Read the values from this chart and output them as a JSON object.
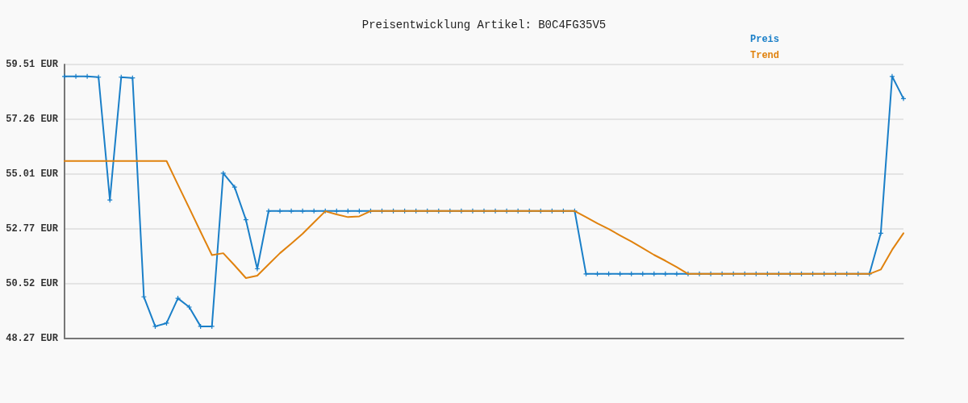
{
  "chart_data": {
    "type": "line",
    "title": "Preisentwicklung Artikel: B0C4FG35V5",
    "categories": [
      null,
      null,
      null,
      null,
      null,
      null,
      null,
      null,
      null,
      null,
      null,
      null,
      null,
      null,
      null,
      null,
      null,
      null,
      null,
      null,
      null,
      null,
      null,
      null,
      null,
      null,
      null,
      null,
      null,
      null,
      null,
      null,
      null,
      null,
      null,
      null,
      null,
      null,
      null,
      null,
      null,
      null,
      null,
      null,
      null,
      null,
      null,
      null,
      null,
      null,
      null,
      null,
      null,
      null,
      null,
      null,
      null,
      null,
      null,
      null,
      null,
      null,
      null,
      null,
      null,
      null,
      null,
      null,
      null,
      null,
      null,
      null,
      null,
      null,
      null
    ],
    "series": [
      {
        "name": "Preis",
        "color": "#1a7fc8",
        "marker": "cross",
        "values": [
          59.02,
          59.02,
          59.02,
          58.99,
          53.95,
          58.99,
          58.96,
          49.98,
          48.77,
          48.9,
          49.92,
          49.56,
          48.77,
          48.77,
          55.05,
          54.48,
          53.14,
          51.13,
          53.5,
          53.5,
          53.5,
          53.5,
          53.5,
          53.5,
          53.5,
          53.5,
          53.5,
          53.5,
          53.5,
          53.5,
          53.5,
          53.5,
          53.5,
          53.5,
          53.5,
          53.5,
          53.5,
          53.5,
          53.5,
          53.5,
          53.5,
          53.5,
          53.5,
          53.5,
          53.5,
          53.5,
          50.92,
          50.92,
          50.92,
          50.92,
          50.92,
          50.92,
          50.92,
          50.92,
          50.92,
          50.92,
          50.92,
          50.92,
          50.92,
          50.92,
          50.92,
          50.92,
          50.92,
          50.92,
          50.92,
          50.92,
          50.92,
          50.92,
          50.92,
          50.92,
          50.92,
          50.92,
          52.59,
          59.02,
          58.11
        ]
      },
      {
        "name": "Trend",
        "color": "#e0820e",
        "marker": "none",
        "values": [
          55.55,
          55.55,
          55.55,
          55.55,
          55.55,
          55.55,
          55.55,
          55.55,
          55.55,
          55.55,
          54.58,
          53.62,
          52.65,
          51.69,
          51.77,
          51.27,
          50.75,
          50.85,
          51.31,
          51.77,
          52.16,
          52.57,
          53.03,
          53.49,
          53.36,
          53.25,
          53.28,
          53.5,
          53.5,
          53.5,
          53.5,
          53.5,
          53.5,
          53.5,
          53.5,
          53.5,
          53.5,
          53.5,
          53.5,
          53.5,
          53.5,
          53.5,
          53.5,
          53.5,
          53.5,
          53.5,
          53.25,
          52.99,
          52.76,
          52.5,
          52.25,
          51.98,
          51.7,
          51.46,
          51.2,
          50.92,
          50.92,
          50.92,
          50.92,
          50.92,
          50.92,
          50.92,
          50.92,
          50.92,
          50.92,
          50.92,
          50.92,
          50.92,
          50.92,
          50.92,
          50.92,
          50.92,
          51.1,
          51.91,
          52.59
        ]
      }
    ],
    "ylim": [
      48.27,
      59.51
    ],
    "yticks": [
      {
        "value": 48.27,
        "label": "48.27 EUR"
      },
      {
        "value": 50.52,
        "label": "50.52 EUR"
      },
      {
        "value": 52.77,
        "label": "52.77 EUR"
      },
      {
        "value": 55.01,
        "label": "55.01 EUR"
      },
      {
        "value": 57.26,
        "label": "57.26 EUR"
      },
      {
        "value": 59.51,
        "label": "59.51 EUR"
      }
    ],
    "grid": "y",
    "legend": "top right",
    "tick_labels": "y",
    "line_style": "solid"
  }
}
